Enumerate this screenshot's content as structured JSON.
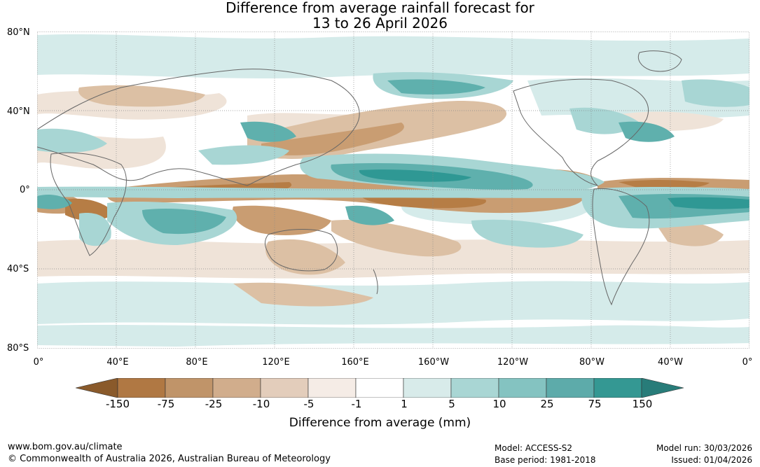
{
  "title": {
    "line1": "Difference from average rainfall forecast for",
    "line2": "13 to 26 April 2026"
  },
  "map": {
    "lat_labels": [
      "80°N",
      "40°N",
      "0°",
      "40°S",
      "80°S"
    ],
    "lon_labels": [
      "0°",
      "40°E",
      "80°E",
      "120°E",
      "160°E",
      "160°W",
      "120°W",
      "80°W",
      "40°W",
      "0°"
    ],
    "colors": {
      "brown_strong": "#b67d45",
      "brown_mid": "#c99d72",
      "brown_light": "#dcc0a4",
      "brown_faint": "#efe3d8",
      "teal_faint": "#d5ebea",
      "teal_light": "#a8d6d4",
      "teal_mid": "#5fb0ad",
      "teal_strong": "#2f9894",
      "coast": "#666666",
      "grid": "#888888"
    }
  },
  "colorbar": {
    "labels": [
      "-150",
      "-75",
      "-25",
      "-10",
      "-5",
      "-1",
      "1",
      "5",
      "10",
      "25",
      "75",
      "150"
    ],
    "colors": [
      "#8a5a2b",
      "#b07843",
      "#c09469",
      "#d1ad8c",
      "#e3cdbb",
      "#f5ece6",
      "#ffffff",
      "#d8ebea",
      "#a9d6d4",
      "#84c3c1",
      "#5dabaa",
      "#349893",
      "#287c79"
    ],
    "unit_label": "Difference from average (mm)"
  },
  "footer": {
    "website": "www.bom.gov.au/climate",
    "copyright": "© Commonwealth of Australia 2026, Australian Bureau of Meteorology",
    "model": "Model: ACCESS-S2",
    "base_period": "Base period: 1981-2018",
    "model_run": "Model run: 30/03/2026",
    "issued": "Issued: 01/04/2026"
  }
}
